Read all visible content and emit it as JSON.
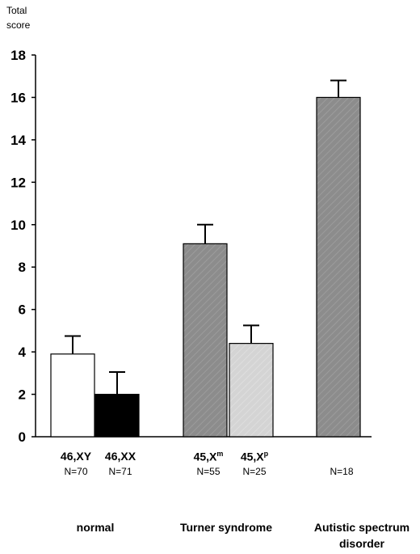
{
  "chart_data": {
    "type": "bar",
    "ylabel": [
      "Total",
      "score"
    ],
    "ylim": [
      0,
      18
    ],
    "yticks": [
      0,
      2,
      4,
      6,
      8,
      10,
      12,
      14,
      16,
      18
    ],
    "bars": [
      {
        "label": "46,XY",
        "sup": "",
        "n": "N=70",
        "value": 3.9,
        "error": 0.85,
        "color": "#ffffff"
      },
      {
        "label": "46,XX",
        "sup": "",
        "n": "N=71",
        "value": 2.0,
        "error": 1.05,
        "color": "#000000"
      },
      {
        "label": "45,X",
        "sup": "m",
        "n": "N=55",
        "value": 9.1,
        "error": 0.9,
        "color": "#8c8c8c"
      },
      {
        "label": "45,X",
        "sup": "p",
        "n": "N=25",
        "value": 4.4,
        "error": 0.85,
        "color": "#d4d4d4"
      },
      {
        "label": "",
        "sup": "",
        "n": "N=18",
        "value": 16.0,
        "error": 0.8,
        "color": "#8c8c8c"
      }
    ],
    "groups": [
      {
        "label": "normal"
      },
      {
        "label": "Turner syndrome"
      },
      {
        "label": "Autistic spectrum disorder"
      }
    ]
  }
}
